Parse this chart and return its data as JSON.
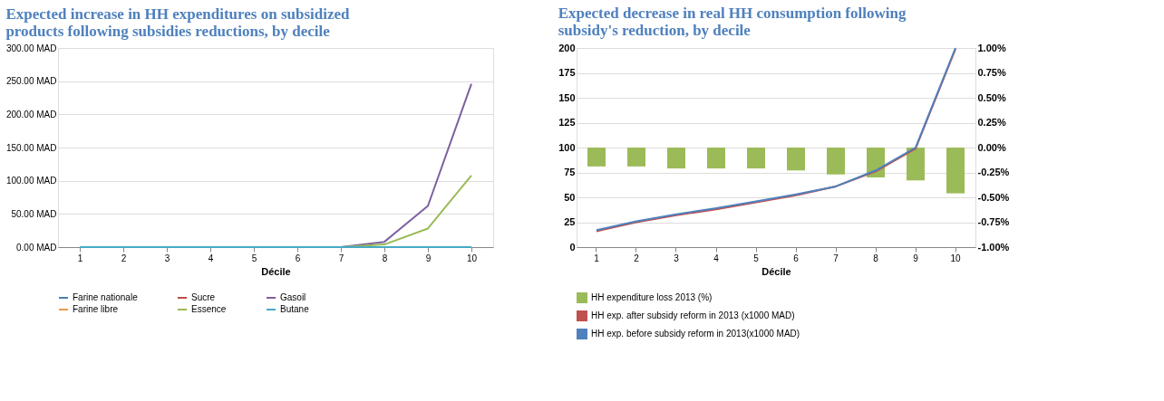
{
  "chart_data": [
    {
      "type": "line",
      "title": "Expected increase in HH expenditures on subsidized products following subsidies reductions, by decile",
      "xlabel": "Décile",
      "categories": [
        "1",
        "2",
        "3",
        "4",
        "5",
        "6",
        "7",
        "8",
        "9",
        "10"
      ],
      "series": [
        {
          "name": "Farine nationale",
          "color": "#4a7ebb",
          "values": [
            null,
            null,
            null,
            null,
            null,
            null,
            null,
            null,
            null,
            null
          ]
        },
        {
          "name": "Sucre",
          "color": "#be4b48",
          "values": [
            null,
            null,
            null,
            null,
            null,
            null,
            null,
            null,
            null,
            null
          ]
        },
        {
          "name": "Gasoil",
          "color": "#7d60a0",
          "values": [
            null,
            null,
            null,
            null,
            null,
            null,
            0,
            8,
            62,
            246
          ]
        },
        {
          "name": "Farine libre",
          "color": "#f79646",
          "values": [
            null,
            null,
            null,
            null,
            null,
            null,
            null,
            null,
            null,
            null
          ]
        },
        {
          "name": "Essence",
          "color": "#98b954",
          "values": [
            null,
            null,
            null,
            null,
            null,
            null,
            0,
            4,
            28,
            108
          ]
        },
        {
          "name": "Butane",
          "color": "#46aac5",
          "values": [
            0,
            0,
            0,
            0,
            0,
            0,
            0,
            0,
            0,
            0
          ]
        }
      ],
      "ylim": [
        0,
        300
      ],
      "yticks": [
        {
          "value": 0,
          "label": "0.00 MAD"
        },
        {
          "value": 50,
          "label": "50.00 MAD"
        },
        {
          "value": 100,
          "label": "100.00 MAD"
        },
        {
          "value": 150,
          "label": "150.00 MAD"
        },
        {
          "value": 200,
          "label": "200.00 MAD"
        },
        {
          "value": 250,
          "label": "250.00 MAD"
        },
        {
          "value": 300,
          "label": "300.00 MAD"
        }
      ],
      "grid": "y",
      "legend": "bottom"
    },
    {
      "type": "line",
      "title": "Expected decrease in real HH consumption following  subsidy's reduction, by decile",
      "xlabel": "Décile",
      "categories": [
        "1",
        "2",
        "3",
        "4",
        "5",
        "6",
        "7",
        "8",
        "9",
        "10"
      ],
      "series": [
        {
          "name": "HH expenditure loss 2013 (%)",
          "type": "bar",
          "axis": "y2",
          "color": "#9bbb59",
          "values": [
            -0.19,
            -0.19,
            -0.21,
            -0.21,
            -0.21,
            -0.23,
            -0.27,
            -0.3,
            -0.33,
            -0.46
          ]
        },
        {
          "name": "HH exp. after subsidy reform in 2013 (x1000 MAD)",
          "color": "#c0504d",
          "values": [
            16,
            25,
            32,
            38,
            45,
            52,
            61,
            76,
            99,
            199
          ]
        },
        {
          "name": "HH exp. before subsidy reform in 2013(x1000 MAD)",
          "color": "#4f81bd",
          "values": [
            17,
            26,
            33,
            39,
            46,
            53,
            61,
            77,
            100,
            200
          ]
        }
      ],
      "ylim": [
        0,
        200
      ],
      "yticks": [
        0,
        25,
        50,
        75,
        100,
        125,
        150,
        175,
        200
      ],
      "y2lim": [
        -1,
        1
      ],
      "y2ticks": [
        {
          "value": -1,
          "label": "-1.00%"
        },
        {
          "value": -0.75,
          "label": "-0.75%"
        },
        {
          "value": -0.5,
          "label": "-0.50%"
        },
        {
          "value": -0.25,
          "label": "-0.25%"
        },
        {
          "value": 0,
          "label": "0.00%"
        },
        {
          "value": 0.25,
          "label": "0.25%"
        },
        {
          "value": 0.5,
          "label": "0.50%"
        },
        {
          "value": 0.75,
          "label": "0.75%"
        },
        {
          "value": 1,
          "label": "1.00%"
        }
      ],
      "grid": "y",
      "legend": "bottom"
    }
  ]
}
